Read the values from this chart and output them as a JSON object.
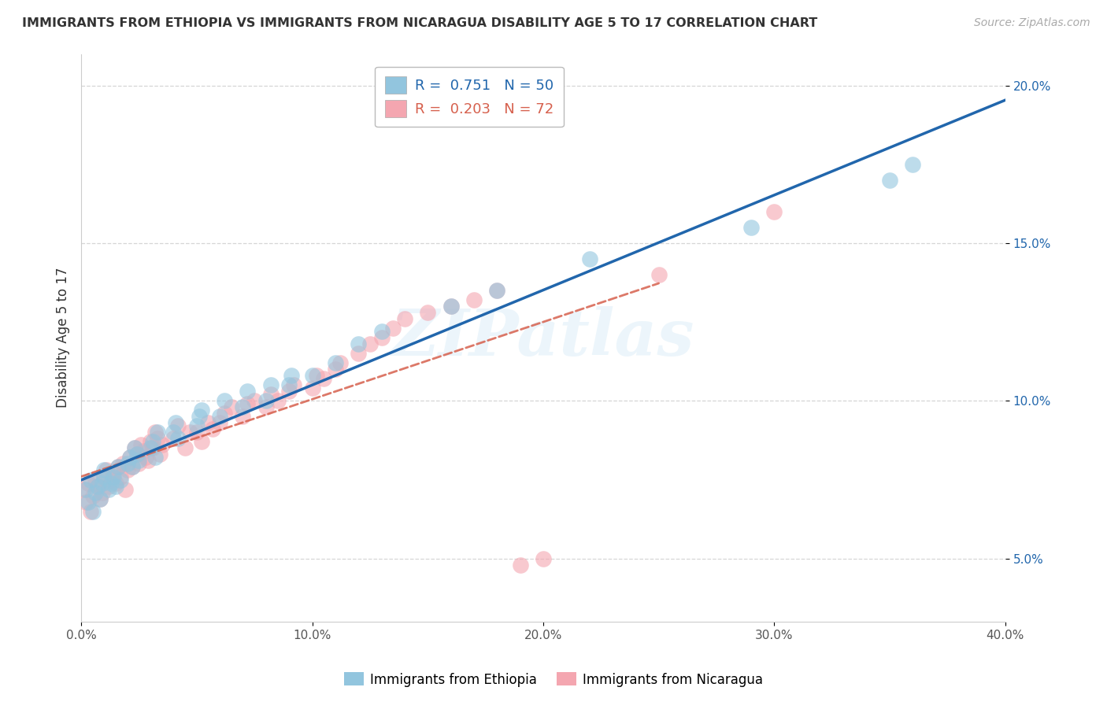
{
  "title": "IMMIGRANTS FROM ETHIOPIA VS IMMIGRANTS FROM NICARAGUA DISABILITY AGE 5 TO 17 CORRELATION CHART",
  "source": "Source: ZipAtlas.com",
  "ylabel": "Disability Age 5 to 17",
  "legend_label_ethiopia": "Immigrants from Ethiopia",
  "legend_label_nicaragua": "Immigrants from Nicaragua",
  "R_ethiopia": 0.751,
  "N_ethiopia": 50,
  "R_nicaragua": 0.203,
  "N_nicaragua": 72,
  "color_ethiopia": "#92c5de",
  "color_nicaragua": "#f4a6b0",
  "color_trendline_ethiopia": "#2166ac",
  "color_trendline_nicaragua": "#d6604d",
  "xmin": 0.0,
  "xmax": 0.4,
  "ymin": 0.03,
  "ymax": 0.21,
  "watermark": "ZIPatlas",
  "ethiopia_x": [
    0.002,
    0.003,
    0.004,
    0.005,
    0.006,
    0.007,
    0.008,
    0.009,
    0.01,
    0.01,
    0.012,
    0.013,
    0.014,
    0.015,
    0.016,
    0.017,
    0.02,
    0.021,
    0.022,
    0.023,
    0.024,
    0.025,
    0.03,
    0.031,
    0.032,
    0.033,
    0.04,
    0.041,
    0.042,
    0.05,
    0.051,
    0.052,
    0.06,
    0.062,
    0.07,
    0.072,
    0.08,
    0.082,
    0.09,
    0.091,
    0.1,
    0.11,
    0.12,
    0.13,
    0.16,
    0.18,
    0.22,
    0.29,
    0.35,
    0.36
  ],
  "ethiopia_y": [
    0.072,
    0.068,
    0.075,
    0.065,
    0.071,
    0.073,
    0.069,
    0.074,
    0.076,
    0.078,
    0.072,
    0.074,
    0.076,
    0.073,
    0.079,
    0.075,
    0.08,
    0.082,
    0.079,
    0.085,
    0.083,
    0.081,
    0.085,
    0.087,
    0.082,
    0.09,
    0.09,
    0.093,
    0.088,
    0.092,
    0.095,
    0.097,
    0.095,
    0.1,
    0.098,
    0.103,
    0.1,
    0.105,
    0.105,
    0.108,
    0.108,
    0.112,
    0.118,
    0.122,
    0.13,
    0.135,
    0.145,
    0.155,
    0.17,
    0.175
  ],
  "nicaragua_x": [
    0.001,
    0.002,
    0.003,
    0.004,
    0.005,
    0.006,
    0.007,
    0.008,
    0.009,
    0.01,
    0.011,
    0.012,
    0.013,
    0.014,
    0.015,
    0.016,
    0.017,
    0.018,
    0.019,
    0.02,
    0.021,
    0.022,
    0.023,
    0.024,
    0.025,
    0.026,
    0.027,
    0.028,
    0.029,
    0.03,
    0.031,
    0.032,
    0.033,
    0.034,
    0.035,
    0.04,
    0.042,
    0.045,
    0.047,
    0.05,
    0.052,
    0.055,
    0.057,
    0.06,
    0.062,
    0.065,
    0.07,
    0.072,
    0.075,
    0.08,
    0.082,
    0.085,
    0.09,
    0.092,
    0.1,
    0.102,
    0.105,
    0.11,
    0.112,
    0.12,
    0.125,
    0.13,
    0.135,
    0.14,
    0.15,
    0.16,
    0.17,
    0.18,
    0.19,
    0.2,
    0.25,
    0.3
  ],
  "nicaragua_y": [
    0.072,
    0.068,
    0.074,
    0.065,
    0.07,
    0.075,
    0.073,
    0.069,
    0.071,
    0.076,
    0.078,
    0.073,
    0.075,
    0.077,
    0.074,
    0.079,
    0.076,
    0.08,
    0.072,
    0.078,
    0.082,
    0.079,
    0.085,
    0.083,
    0.08,
    0.086,
    0.084,
    0.082,
    0.081,
    0.087,
    0.085,
    0.09,
    0.088,
    0.083,
    0.086,
    0.088,
    0.092,
    0.085,
    0.09,
    0.09,
    0.087,
    0.093,
    0.091,
    0.093,
    0.096,
    0.098,
    0.095,
    0.099,
    0.1,
    0.098,
    0.102,
    0.1,
    0.103,
    0.105,
    0.104,
    0.108,
    0.107,
    0.11,
    0.112,
    0.115,
    0.118,
    0.12,
    0.123,
    0.126,
    0.128,
    0.13,
    0.132,
    0.135,
    0.048,
    0.05,
    0.14,
    0.16
  ]
}
